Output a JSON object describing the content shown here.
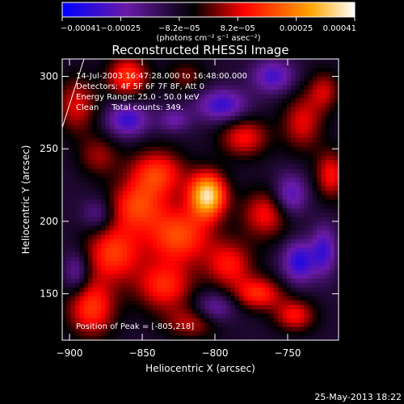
{
  "colors": {
    "background": "#000000",
    "foreground": "#ffffff",
    "colormap_stops": [
      "#0000ff",
      "#6a1aa8",
      "#000000",
      "#ff0000",
      "#ffa500",
      "#ffffff"
    ]
  },
  "chart_data": {
    "type": "heatmap",
    "title": "Reconstructed RHESSI Image",
    "xlabel": "Heliocentric X (arcsec)",
    "ylabel": "Heliocentric Y (arcsec)",
    "xlim": [
      -905,
      -715
    ],
    "ylim": [
      118,
      312
    ],
    "x_ticks": [
      -900,
      -850,
      -800,
      -750
    ],
    "x_tick_labels": [
      "−900",
      "−850",
      "−800",
      "−750"
    ],
    "y_ticks": [
      150,
      200,
      250,
      300
    ],
    "y_tick_labels": [
      "150",
      "200",
      "250",
      "300"
    ],
    "colorbar": {
      "range": [
        -0.00041,
        0.00041
      ],
      "tick_labels": [
        "−0.00041",
        "−0.00025",
        "−8.2e−05",
        "8.2e−05",
        "0.00025",
        "0.00041"
      ],
      "unit_label": "(photons cm⁻² s⁻¹ asec⁻²)"
    },
    "annotations": [
      "14-Jul-2003 16:47:28.000 to 16:48:00.000",
      "Detectors: 4F 5F 6F 7F 8F, Att 0",
      "Energy Range: 25.0 - 50.0 keV",
      "Clean     Total counts: 349."
    ],
    "peak_label": "Position of Peak = [-805,218]",
    "peak": {
      "x": -805,
      "y": 218
    },
    "blobs": [
      {
        "x": -805,
        "y": 218,
        "amp": 1.0,
        "sx": 9,
        "sy": 11
      },
      {
        "x": -840,
        "y": 233,
        "amp": 0.55,
        "sx": 14,
        "sy": 12
      },
      {
        "x": -825,
        "y": 190,
        "amp": 0.6,
        "sx": 16,
        "sy": 14
      },
      {
        "x": -870,
        "y": 178,
        "amp": 0.55,
        "sx": 14,
        "sy": 14
      },
      {
        "x": -855,
        "y": 210,
        "amp": 0.5,
        "sx": 14,
        "sy": 12
      },
      {
        "x": -885,
        "y": 140,
        "amp": 0.55,
        "sx": 12,
        "sy": 14
      },
      {
        "x": -835,
        "y": 155,
        "amp": 0.5,
        "sx": 14,
        "sy": 12
      },
      {
        "x": -790,
        "y": 170,
        "amp": 0.45,
        "sx": 12,
        "sy": 12
      },
      {
        "x": -765,
        "y": 205,
        "amp": 0.45,
        "sx": 12,
        "sy": 12
      },
      {
        "x": -770,
        "y": 150,
        "amp": 0.5,
        "sx": 12,
        "sy": 8
      },
      {
        "x": -745,
        "y": 135,
        "amp": 0.45,
        "sx": 10,
        "sy": 8
      },
      {
        "x": -815,
        "y": 130,
        "amp": 0.35,
        "sx": 14,
        "sy": 8
      },
      {
        "x": -860,
        "y": 300,
        "amp": 0.55,
        "sx": 10,
        "sy": 10
      },
      {
        "x": -895,
        "y": 280,
        "amp": 0.4,
        "sx": 10,
        "sy": 14
      },
      {
        "x": -780,
        "y": 258,
        "amp": 0.45,
        "sx": 12,
        "sy": 10
      },
      {
        "x": -740,
        "y": 268,
        "amp": 0.4,
        "sx": 10,
        "sy": 14
      },
      {
        "x": -720,
        "y": 232,
        "amp": 0.45,
        "sx": 8,
        "sy": 12
      },
      {
        "x": -725,
        "y": 290,
        "amp": 0.35,
        "sx": 8,
        "sy": 10
      },
      {
        "x": -820,
        "y": 300,
        "amp": 0.25,
        "sx": 10,
        "sy": 8
      },
      {
        "x": -880,
        "y": 245,
        "amp": 0.3,
        "sx": 10,
        "sy": 10
      },
      {
        "x": -860,
        "y": 270,
        "amp": -0.5,
        "sx": 10,
        "sy": 8
      },
      {
        "x": -795,
        "y": 280,
        "amp": -0.5,
        "sx": 12,
        "sy": 8
      },
      {
        "x": -760,
        "y": 300,
        "amp": -0.45,
        "sx": 10,
        "sy": 8
      },
      {
        "x": -748,
        "y": 218,
        "amp": -0.45,
        "sx": 8,
        "sy": 10
      },
      {
        "x": -742,
        "y": 172,
        "amp": -0.55,
        "sx": 8,
        "sy": 10
      },
      {
        "x": -725,
        "y": 180,
        "amp": -0.45,
        "sx": 6,
        "sy": 12
      },
      {
        "x": -800,
        "y": 140,
        "amp": -0.35,
        "sx": 10,
        "sy": 8
      },
      {
        "x": -880,
        "y": 205,
        "amp": -0.3,
        "sx": 8,
        "sy": 8
      },
      {
        "x": -895,
        "y": 165,
        "amp": -0.35,
        "sx": 6,
        "sy": 10
      },
      {
        "x": -828,
        "y": 270,
        "amp": -0.3,
        "sx": 8,
        "sy": 6
      }
    ]
  },
  "footer": {
    "date_stamp": "25-May-2013 18:22"
  }
}
